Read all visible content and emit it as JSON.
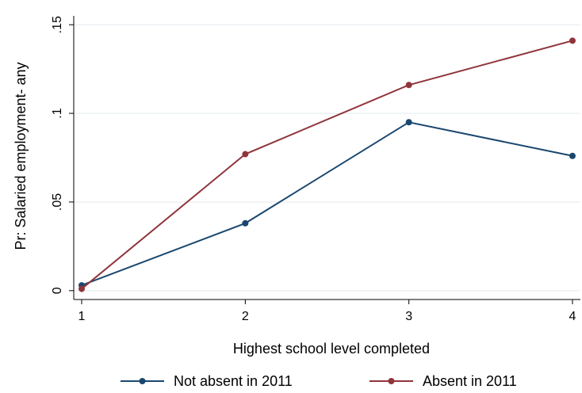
{
  "chart_data": {
    "type": "line",
    "title": "",
    "xlabel": "Highest school level completed",
    "ylabel": "Pr: Salaried employment- any",
    "x": [
      1,
      2,
      3,
      4
    ],
    "x_ticks": [
      "1",
      "2",
      "3",
      "4"
    ],
    "y_ticks": [
      {
        "value": 0,
        "label": "0"
      },
      {
        "value": 0.05,
        "label": ".05"
      },
      {
        "value": 0.1,
        "label": ".1"
      },
      {
        "value": 0.15,
        "label": ".15"
      }
    ],
    "xlim": [
      1,
      4
    ],
    "ylim": [
      -0.005,
      0.155
    ],
    "grid": true,
    "legend_position": "bottom",
    "series": [
      {
        "name": "Not absent in 2011",
        "color": "#1a476f",
        "values": [
          0.003,
          0.038,
          0.095,
          0.076
        ]
      },
      {
        "name": "Absent in 2011",
        "color": "#90353b",
        "values": [
          0.001,
          0.077,
          0.116,
          0.141
        ]
      }
    ]
  }
}
